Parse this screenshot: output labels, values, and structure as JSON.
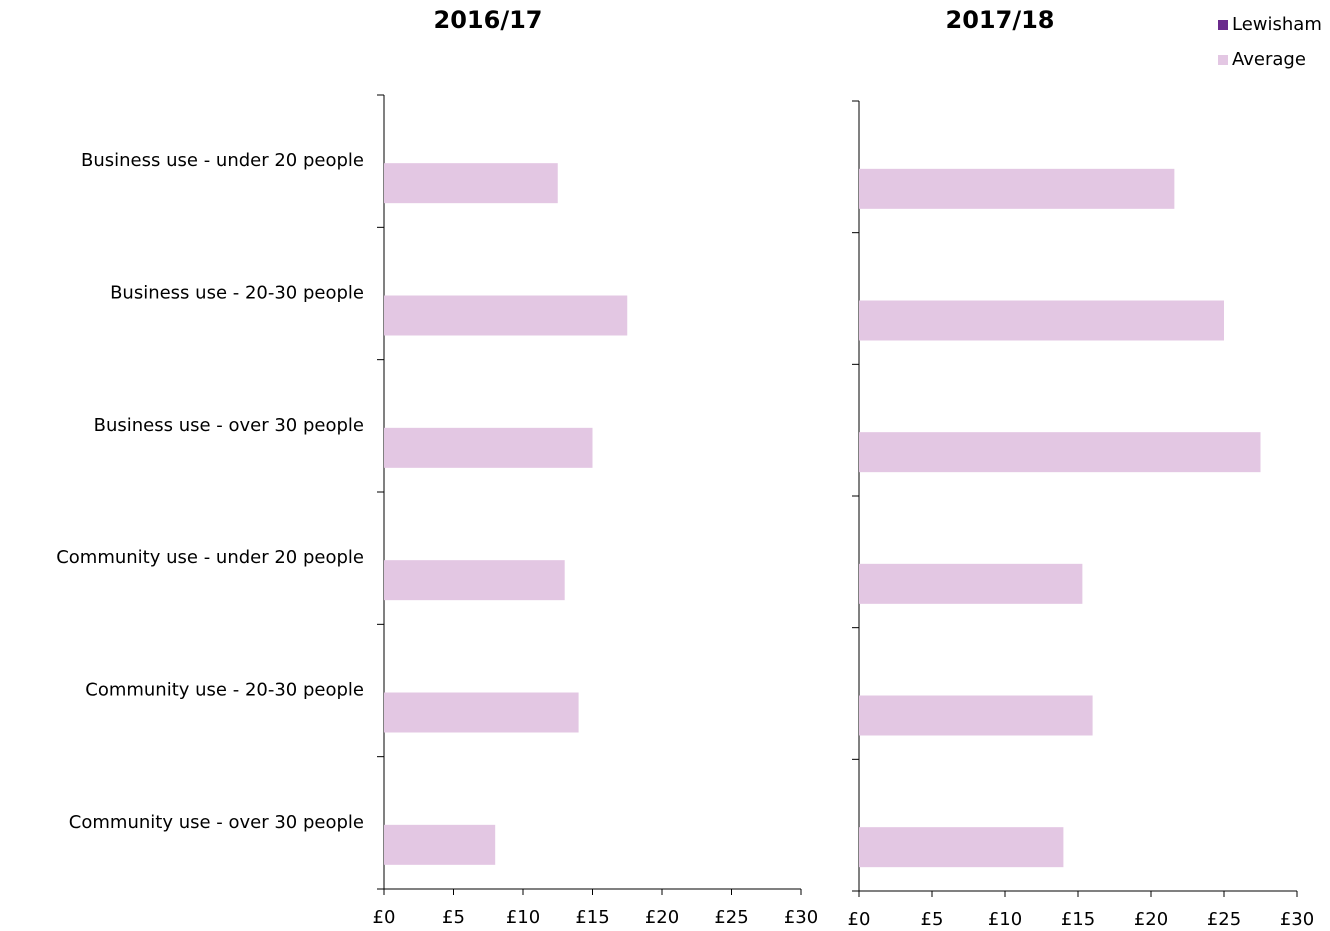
{
  "chart_data": [
    {
      "type": "bar",
      "title": "2016/17",
      "categories": [
        "Business use - under 20 people",
        "Business use - 20-30 people",
        "Business use - over 30 people",
        "Community use - under 20 people",
        "Community use - 20-30 people",
        "Community use - over 30 people"
      ],
      "series": [
        {
          "color": "#e3c7e3",
          "values": [
            12.5,
            17.5,
            15,
            13,
            14,
            8
          ]
        }
      ],
      "xlim": [
        0,
        30
      ],
      "xticks": [
        {
          "value": 0,
          "label": "£0"
        },
        {
          "value": 5,
          "label": "£5"
        },
        {
          "value": 10,
          "label": "£10"
        },
        {
          "value": 15,
          "label": "£15"
        },
        {
          "value": 20,
          "label": "£20"
        },
        {
          "value": 25,
          "label": "£25"
        },
        {
          "value": 30,
          "label": "£30"
        }
      ]
    },
    {
      "type": "bar",
      "title": "2017/18",
      "series": [
        {
          "name": "Lewisham",
          "color": "#6a2a8c",
          "values": [
            null,
            null,
            null,
            null,
            null,
            null
          ]
        },
        {
          "name": "Average",
          "color": "#e3c7e3",
          "values": [
            21.6,
            25,
            27.5,
            15.3,
            16,
            14
          ]
        }
      ],
      "xlim": [
        0,
        30
      ],
      "xticks": [
        {
          "value": 0,
          "label": "£0"
        },
        {
          "value": 5,
          "label": "£5"
        },
        {
          "value": 10,
          "label": "£10"
        },
        {
          "value": 15,
          "label": "£15"
        },
        {
          "value": 20,
          "label": "£20"
        },
        {
          "value": 25,
          "label": "£25"
        },
        {
          "value": 30,
          "label": "£30"
        }
      ],
      "legend": "top-right"
    }
  ]
}
